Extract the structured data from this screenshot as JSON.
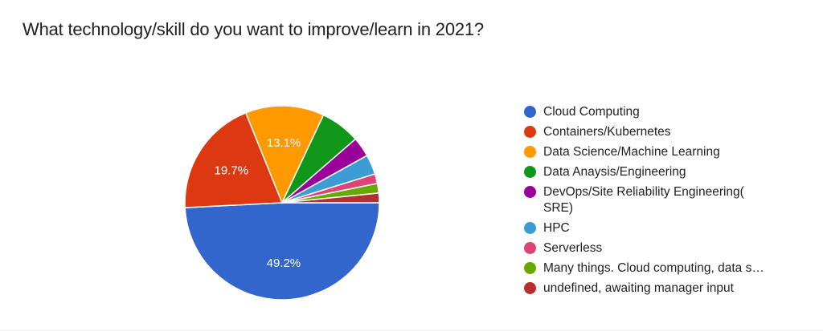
{
  "title": "What technology/skill do you want to improve/learn in 2021?",
  "chart_data": {
    "type": "pie",
    "title": "What technology/skill do you want to improve/learn in 2021?",
    "categories": [
      "Cloud Computing",
      "Containers/Kubernetes",
      "Data Science/Machine Learning",
      "Data Anaysis/Engineering",
      "DevOps/Site Reliability Engineering( SRE)",
      "HPC",
      "Serverless",
      "Many things. Cloud computing, data s…",
      "undefined, awaiting manager input"
    ],
    "values": [
      49.2,
      19.7,
      13.1,
      6.6,
      3.3,
      3.3,
      1.6,
      1.6,
      1.6
    ],
    "colors": [
      "#3366cc",
      "#dc3912",
      "#ff9900",
      "#109618",
      "#990099",
      "#3b9dd4",
      "#dd4477",
      "#66aa00",
      "#b82e2e"
    ],
    "slice_labels": [
      "49.2%",
      "19.7%",
      "13.1%",
      "",
      "",
      "",
      "",
      "",
      ""
    ],
    "legend_position": "right"
  },
  "legend": [
    {
      "label": "Cloud Computing",
      "color": "#3366cc"
    },
    {
      "label": "Containers/Kubernetes",
      "color": "#dc3912"
    },
    {
      "label": "Data Science/Machine Learning",
      "color": "#ff9900"
    },
    {
      "label": "Data Anaysis/Engineering",
      "color": "#109618"
    },
    {
      "label": "DevOps/Site Reliability Engineering( SRE)",
      "color": "#990099"
    },
    {
      "label": "HPC",
      "color": "#3b9dd4"
    },
    {
      "label": "Serverless",
      "color": "#dd4477"
    },
    {
      "label": "Many things. Cloud computing, data s…",
      "color": "#66aa00"
    },
    {
      "label": "undefined, awaiting manager input",
      "color": "#b82e2e"
    }
  ]
}
